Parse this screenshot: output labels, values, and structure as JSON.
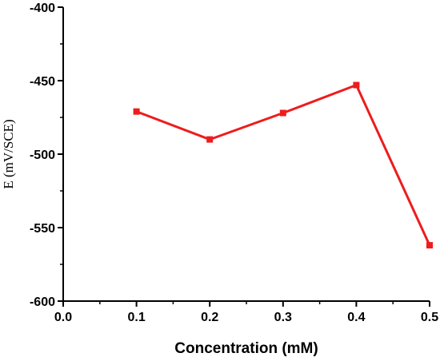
{
  "chart_data": {
    "type": "line",
    "title": "",
    "xlabel": "Concentration (mM)",
    "ylabel": "E (mV/SCE)",
    "xlim": [
      0.0,
      0.5
    ],
    "ylim": [
      -600,
      -400
    ],
    "x_ticks": [
      "0.0",
      "0.1",
      "0.2",
      "0.3",
      "0.4",
      "0.5"
    ],
    "y_ticks": [
      "-400",
      "-450",
      "-500",
      "-550",
      "-600"
    ],
    "grid": false,
    "legend": "none",
    "series": [
      {
        "color": "#ee1c1c",
        "marker": "square",
        "x": [
          0.1,
          0.2,
          0.3,
          0.4,
          0.5
        ],
        "values": [
          -471,
          -490,
          -472,
          -453,
          -562
        ]
      }
    ]
  }
}
